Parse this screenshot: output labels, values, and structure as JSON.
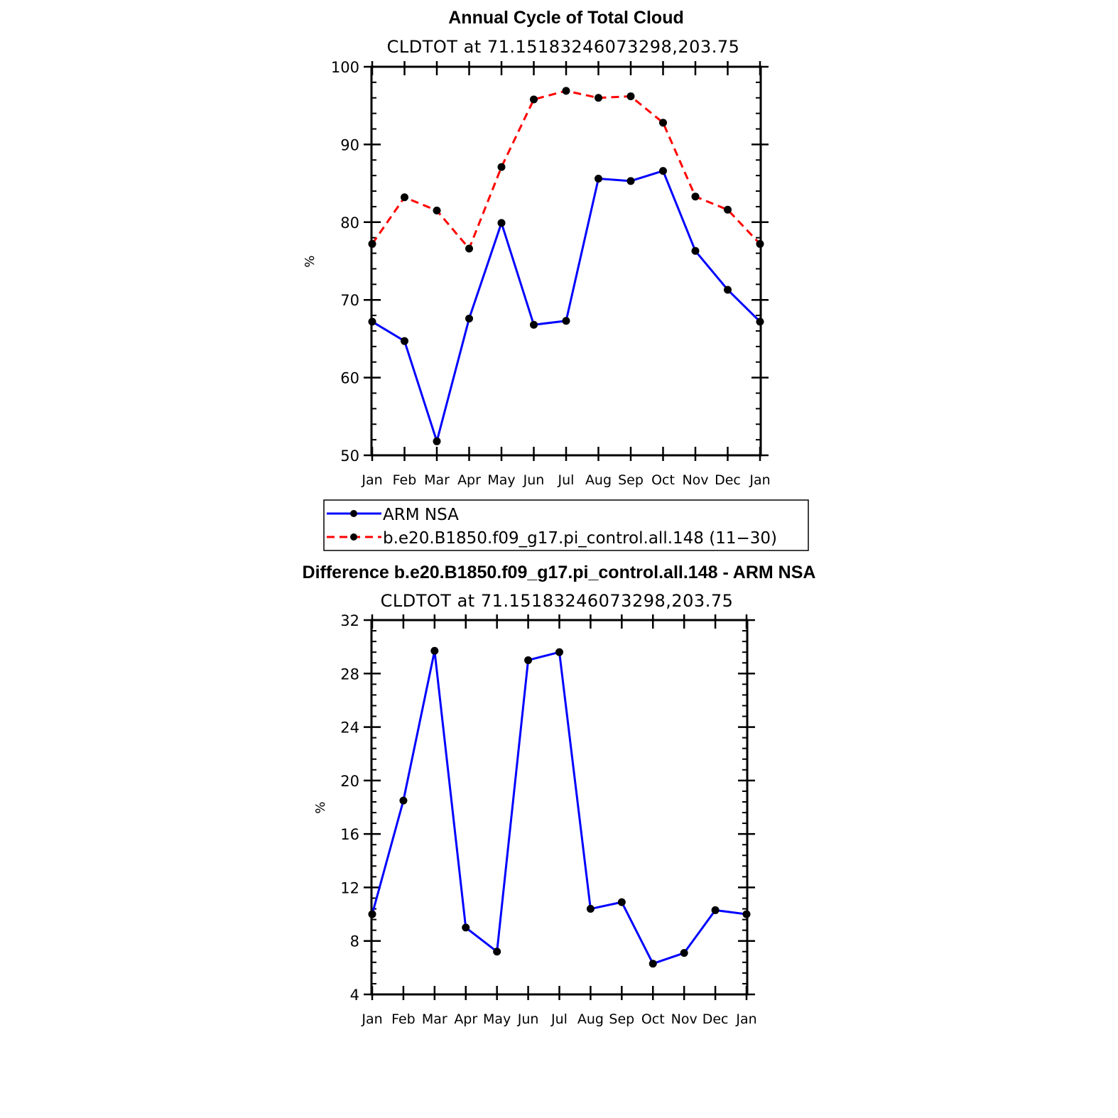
{
  "chart_data": [
    {
      "type": "line",
      "title": "Annual Cycle of Total Cloud",
      "subtitle": "CLDTOT at 71.15183246073298,203.75",
      "ylabel": "%",
      "xlabel": "",
      "categories": [
        "Jan",
        "Feb",
        "Mar",
        "Apr",
        "May",
        "Jun",
        "Jul",
        "Aug",
        "Sep",
        "Oct",
        "Nov",
        "Dec",
        "Jan"
      ],
      "ylim": [
        50,
        100
      ],
      "yticks": [
        50,
        60,
        70,
        80,
        90,
        100
      ],
      "grid": false,
      "legend_position": "below",
      "series": [
        {
          "name": "ARM NSA",
          "color": "#0000ff",
          "style": "solid",
          "values": [
            67.2,
            64.7,
            51.8,
            67.6,
            79.9,
            66.8,
            67.3,
            85.6,
            85.3,
            86.6,
            76.3,
            71.3,
            67.2
          ]
        },
        {
          "name": "b.e20.B1850.f09_g17.pi_control.all.148 (11−30)",
          "color": "#ff0000",
          "style": "dashed",
          "values": [
            77.2,
            83.2,
            81.5,
            76.6,
            87.1,
            95.8,
            96.9,
            96.0,
            96.2,
            92.8,
            83.3,
            81.6,
            77.2
          ]
        }
      ]
    },
    {
      "type": "line",
      "title": "Difference b.e20.B1850.f09_g17.pi_control.all.148 - ARM NSA",
      "subtitle": "CLDTOT at 71.15183246073298,203.75",
      "ylabel": "%",
      "xlabel": "",
      "categories": [
        "Jan",
        "Feb",
        "Mar",
        "Apr",
        "May",
        "Jun",
        "Jul",
        "Aug",
        "Sep",
        "Oct",
        "Nov",
        "Dec",
        "Jan"
      ],
      "ylim": [
        4,
        32
      ],
      "yticks": [
        4,
        8,
        12,
        16,
        20,
        24,
        28,
        32
      ],
      "grid": false,
      "series": [
        {
          "color": "#0000ff",
          "style": "solid",
          "values": [
            10.0,
            18.5,
            29.7,
            9.0,
            7.2,
            29.0,
            29.6,
            10.4,
            10.9,
            6.3,
            7.1,
            10.3,
            10.0
          ]
        }
      ]
    }
  ]
}
